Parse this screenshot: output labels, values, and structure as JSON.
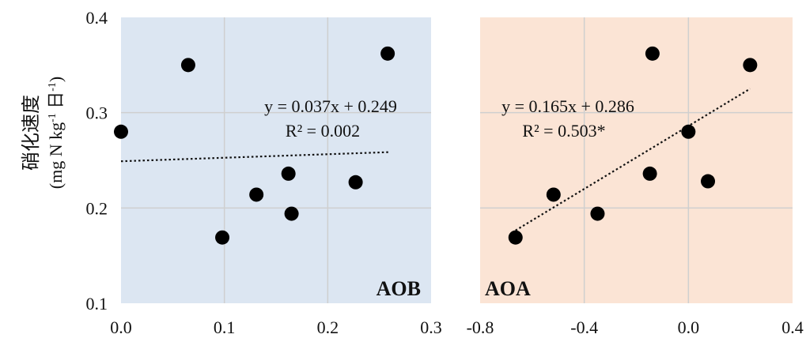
{
  "chart_data": [
    {
      "type": "scatter",
      "panel_label": "AOB",
      "ylabel": "硝化速度",
      "ylabel_unit": "(mg N kg-1 日-1)",
      "xlim": [
        0.0,
        0.3
      ],
      "ylim": [
        0.1,
        0.4
      ],
      "xticks": [
        "0.0",
        "0.1",
        "0.2",
        "0.3"
      ],
      "yticks": [
        "0.1",
        "0.2",
        "0.3",
        "0.4"
      ],
      "grid": true,
      "background": "#dce6f2",
      "points": [
        {
          "x": 0.0,
          "y": 0.28
        },
        {
          "x": 0.065,
          "y": 0.35
        },
        {
          "x": 0.098,
          "y": 0.169
        },
        {
          "x": 0.131,
          "y": 0.214
        },
        {
          "x": 0.162,
          "y": 0.236
        },
        {
          "x": 0.165,
          "y": 0.194
        },
        {
          "x": 0.227,
          "y": 0.227
        },
        {
          "x": 0.258,
          "y": 0.362
        }
      ],
      "trendline": {
        "slope": 0.037,
        "intercept": 0.249,
        "x_range": [
          0.0,
          0.26
        ]
      },
      "equation": "y = 0.037x + 0.249",
      "r2": "R² = 0.002"
    },
    {
      "type": "scatter",
      "panel_label": "AOA",
      "xlim": [
        -0.8,
        0.4
      ],
      "ylim": [
        0.1,
        0.4
      ],
      "xticks": [
        "-0.8",
        "-0.4",
        "0.0",
        "0.4"
      ],
      "grid": true,
      "background": "#fbe4d5",
      "points": [
        {
          "x": -0.664,
          "y": 0.169
        },
        {
          "x": -0.518,
          "y": 0.214
        },
        {
          "x": -0.349,
          "y": 0.194
        },
        {
          "x": -0.148,
          "y": 0.236
        },
        {
          "x": -0.138,
          "y": 0.362
        },
        {
          "x": 0.0,
          "y": 0.28
        },
        {
          "x": 0.075,
          "y": 0.228
        },
        {
          "x": 0.237,
          "y": 0.35
        }
      ],
      "trendline": {
        "slope": 0.165,
        "intercept": 0.286,
        "x_range": [
          -0.664,
          0.237
        ]
      },
      "equation": "y = 0.165x + 0.286",
      "r2": "R² = 0.503*"
    }
  ]
}
